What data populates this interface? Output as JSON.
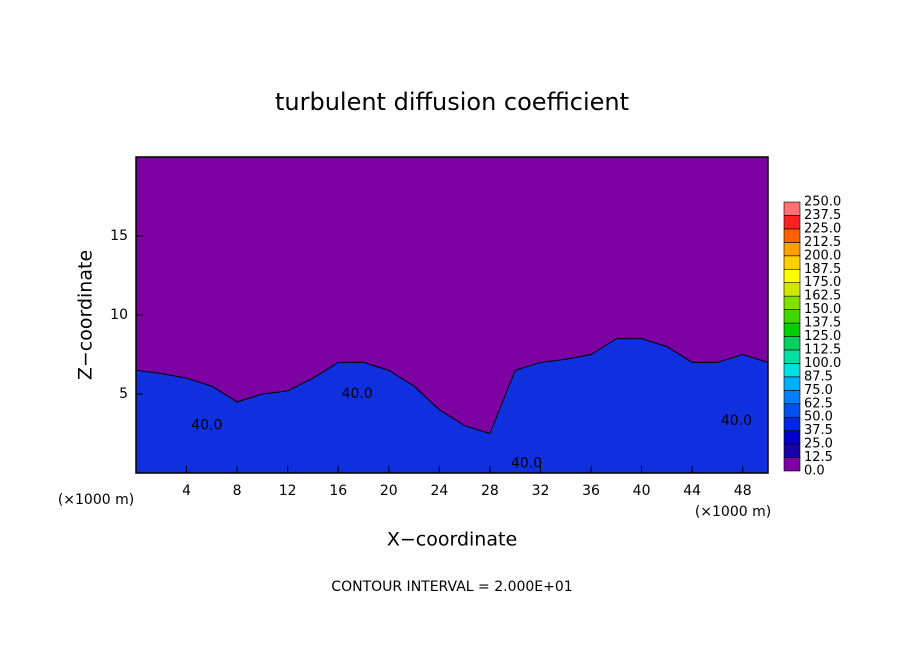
{
  "chart_data": {
    "type": "contour",
    "title": "turbulent diffusion coefficient",
    "xlabel": "X−coordinate",
    "ylabel": "Z−coordinate",
    "x_unit_left": "(×1000 m)",
    "x_unit_right": "(×1000 m)",
    "footer": "CONTOUR INTERVAL = 2.000E+01",
    "xlim": [
      0,
      50
    ],
    "xticks": [
      4,
      8,
      12,
      16,
      20,
      24,
      28,
      32,
      36,
      40,
      44,
      48
    ],
    "ylim": [
      0,
      20
    ],
    "yticks": [
      5,
      10,
      15
    ],
    "background_color": "#7d00a3",
    "field": {
      "color": "#1030e0",
      "x": [
        0,
        2,
        4,
        6,
        8,
        10,
        12,
        14,
        16,
        18,
        20,
        22,
        24,
        26,
        28,
        30,
        32,
        34,
        36,
        38,
        40,
        42,
        44,
        46,
        48,
        50
      ],
      "top": [
        6.5,
        6.3,
        6,
        5.5,
        4.5,
        5,
        5.2,
        6,
        7,
        7,
        6.5,
        5.5,
        4,
        3,
        2.5,
        6.5,
        7,
        7.2,
        7.5,
        8.5,
        8.5,
        8,
        7,
        7,
        7.5,
        7
      ]
    },
    "contour_labels": [
      {
        "value": 40,
        "label": "40.0",
        "x": 17.5,
        "y": 5
      },
      {
        "value": 40,
        "label": "40.0",
        "x": 5.6,
        "y": 3
      },
      {
        "value": 40,
        "label": "40.0",
        "x": 30.9,
        "y": 0.6
      },
      {
        "value": 40,
        "label": "40.0",
        "x": 47.5,
        "y": 3.3
      }
    ],
    "colorbar": {
      "levels": [
        {
          "value": 0,
          "label": "0.0"
        },
        {
          "value": 12.5,
          "label": "12.5"
        },
        {
          "value": 25,
          "label": "25.0"
        },
        {
          "value": 37.5,
          "label": "37.5"
        },
        {
          "value": 50,
          "label": "50.0"
        },
        {
          "value": 62.5,
          "label": "62.5"
        },
        {
          "value": 75,
          "label": "75.0"
        },
        {
          "value": 87.5,
          "label": "87.5"
        },
        {
          "value": 100,
          "label": "100.0"
        },
        {
          "value": 112.5,
          "label": "112.5"
        },
        {
          "value": 125,
          "label": "125.0"
        },
        {
          "value": 137.5,
          "label": "137.5"
        },
        {
          "value": 150,
          "label": "150.0"
        },
        {
          "value": 162.5,
          "label": "162.5"
        },
        {
          "value": 175,
          "label": "175.0"
        },
        {
          "value": 187.5,
          "label": "187.5"
        },
        {
          "value": 200,
          "label": "200.0"
        },
        {
          "value": 212.5,
          "label": "212.5"
        },
        {
          "value": 225,
          "label": "225.0"
        },
        {
          "value": 237.5,
          "label": "237.5"
        },
        {
          "value": 250,
          "label": "250.0"
        }
      ],
      "colors": [
        "#7d00a3",
        "#1a00a8",
        "#0000c8",
        "#0028e0",
        "#0050f0",
        "#0080ff",
        "#00b0ff",
        "#00e0e0",
        "#00e0a0",
        "#00d060",
        "#00d000",
        "#40d800",
        "#80e000",
        "#d0e800",
        "#ffff00",
        "#ffd000",
        "#ffa000",
        "#ff6000",
        "#ff2020",
        "#ff7070"
      ]
    }
  }
}
